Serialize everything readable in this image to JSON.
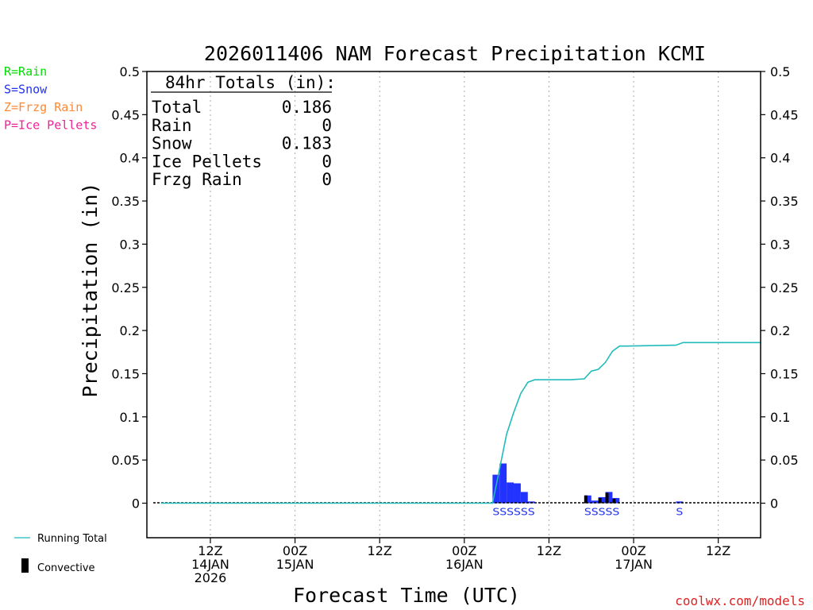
{
  "chart_data": {
    "type": "bar",
    "title": "2026011406 NAM Forecast Precipitation KCMI",
    "xlabel": "Forecast Time (UTC)",
    "ylabel": "Precipitation (in)",
    "ylim": [
      -0.04,
      0.5
    ],
    "xlim_hours": [
      -3,
      84
    ],
    "y_ticks": [
      0,
      0.05,
      0.1,
      0.15,
      0.2,
      0.25,
      0.3,
      0.35,
      0.4,
      0.45,
      0.5
    ],
    "y_tick_labels": [
      "0",
      "0.05",
      "0.1",
      "0.15",
      "0.2",
      "0.25",
      "0.3",
      "0.35",
      "0.4",
      "0.45",
      "0.5"
    ],
    "x_ticks": [
      {
        "hour": 6,
        "labels": [
          "12Z",
          "14JAN",
          "2026"
        ]
      },
      {
        "hour": 18,
        "labels": [
          "00Z",
          "15JAN"
        ]
      },
      {
        "hour": 30,
        "labels": [
          "12Z"
        ]
      },
      {
        "hour": 42,
        "labels": [
          "00Z",
          "16JAN"
        ]
      },
      {
        "hour": 54,
        "labels": [
          "12Z"
        ]
      },
      {
        "hour": 66,
        "labels": [
          "00Z",
          "17JAN"
        ]
      },
      {
        "hour": 78,
        "labels": [
          "12Z"
        ]
      }
    ],
    "legend_top": [
      {
        "text": "R=Rain",
        "color": "#00dd00"
      },
      {
        "text": "S=Snow",
        "color": "#2233ee"
      },
      {
        "text": "Z=Frzg Rain",
        "color": "#ff8833"
      },
      {
        "text": "P=Ice Pellets",
        "color": "#ee2299"
      }
    ],
    "legend_bottom": {
      "running_total_label": "Running Total",
      "convective_label": "Convective"
    },
    "totals_box": {
      "header": "84hr Totals (in):",
      "rows": [
        {
          "name": "Total",
          "value": "0.186"
        },
        {
          "name": "Rain",
          "value": "0"
        },
        {
          "name": "Snow",
          "value": "0.183"
        },
        {
          "name": "Ice Pellets",
          "value": "0"
        },
        {
          "name": "Frzg Rain",
          "value": "0"
        }
      ]
    },
    "series": [
      {
        "name": "Snow",
        "color": "#2233ff",
        "bars": [
          {
            "hour": 47,
            "value": 0.033
          },
          {
            "hour": 48,
            "value": 0.046
          },
          {
            "hour": 49,
            "value": 0.024
          },
          {
            "hour": 50,
            "value": 0.023
          },
          {
            "hour": 51,
            "value": 0.013
          },
          {
            "hour": 52,
            "value": 0.002
          },
          {
            "hour": 60,
            "value": 0.009
          },
          {
            "hour": 61,
            "value": 0.003
          },
          {
            "hour": 62,
            "value": 0.007
          },
          {
            "hour": 63,
            "value": 0.013
          },
          {
            "hour": 64,
            "value": 0.006
          },
          {
            "hour": 73,
            "value": 0.002
          }
        ]
      },
      {
        "name": "Convective",
        "color": "#000000",
        "bars": [
          {
            "hour": 60,
            "value": 0.009
          },
          {
            "hour": 62,
            "value": 0.006
          },
          {
            "hour": 63,
            "value": 0.012
          },
          {
            "hour": 64,
            "value": 0.005
          }
        ]
      },
      {
        "name": "Running Total",
        "color": "#22bbbb",
        "points": [
          [
            -1,
            0
          ],
          [
            46,
            0
          ],
          [
            47,
            0.04
          ],
          [
            48,
            0.08
          ],
          [
            49,
            0.105
          ],
          [
            50,
            0.127
          ],
          [
            51,
            0.14
          ],
          [
            52,
            0.143
          ],
          [
            53,
            0.143
          ],
          [
            57,
            0.143
          ],
          [
            59,
            0.144
          ],
          [
            60,
            0.153
          ],
          [
            61,
            0.155
          ],
          [
            62,
            0.163
          ],
          [
            63,
            0.176
          ],
          [
            64,
            0.182
          ],
          [
            65,
            0.182
          ],
          [
            72,
            0.183
          ],
          [
            73,
            0.186
          ],
          [
            84,
            0.186
          ]
        ]
      }
    ],
    "ptype_markers": [
      {
        "text": "SSSSSS",
        "hour_start": 47,
        "color": "#2233ee"
      },
      {
        "text": "SSSSS",
        "hour_start": 60,
        "color": "#2233ee"
      },
      {
        "text": "S",
        "hour_start": 73,
        "color": "#2233ee"
      }
    ],
    "credit": "coolwx.com/models"
  }
}
